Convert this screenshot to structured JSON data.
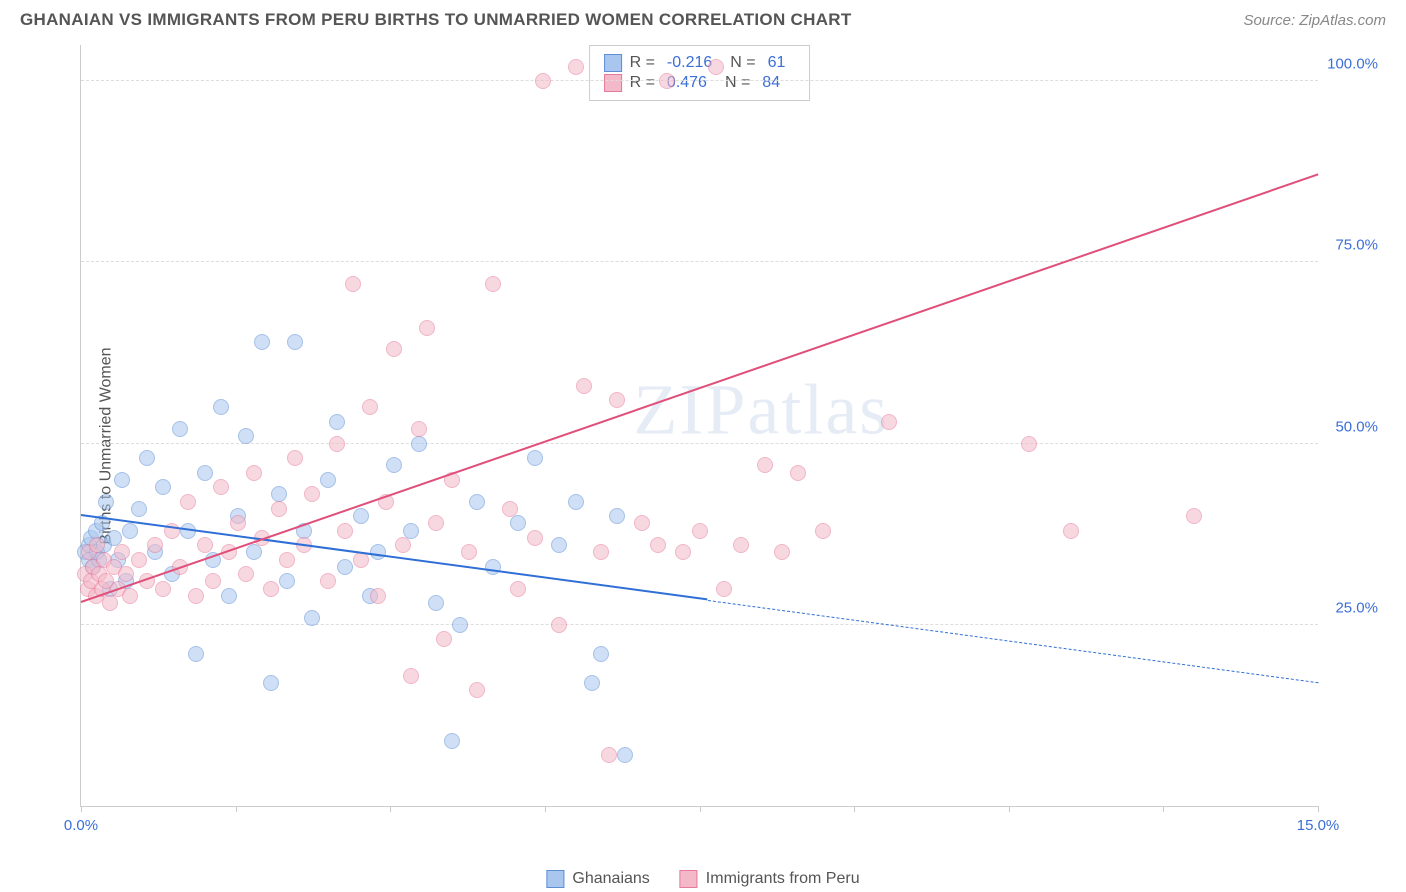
{
  "header": {
    "title": "GHANAIAN VS IMMIGRANTS FROM PERU BIRTHS TO UNMARRIED WOMEN CORRELATION CHART",
    "source": "Source: ZipAtlas.com"
  },
  "watermark": "ZIPatlas",
  "chart": {
    "type": "scatter",
    "ylabel": "Births to Unmarried Women",
    "xlim": [
      0,
      15
    ],
    "ylim": [
      0,
      105
    ],
    "x_ticks": [
      0.0,
      1.875,
      3.75,
      5.625,
      7.5,
      9.375,
      11.25,
      13.125,
      15.0
    ],
    "x_tick_labels": {
      "0": "0.0%",
      "15": "15.0%"
    },
    "y_gridlines": [
      25,
      50,
      75,
      100
    ],
    "y_tick_labels": {
      "25": "25.0%",
      "50": "50.0%",
      "75": "75.0%",
      "100": "100.0%"
    },
    "background_color": "#ffffff",
    "grid_color": "#dddddd",
    "axis_color": "#cccccc",
    "label_color": "#3b6fd6",
    "marker_radius": 8,
    "marker_opacity": 0.55,
    "series": [
      {
        "name": "Ghanaians",
        "color_fill": "#a8c6ee",
        "color_stroke": "#5e8fd6",
        "R": "-0.216",
        "N": "61",
        "trend": {
          "x1": 0,
          "y1": 40,
          "x2": 15,
          "y2": 17,
          "solid_until_x": 7.6,
          "color": "#2f6fd6"
        },
        "points": [
          [
            0.05,
            35
          ],
          [
            0.1,
            36
          ],
          [
            0.1,
            34
          ],
          [
            0.12,
            37
          ],
          [
            0.15,
            33
          ],
          [
            0.18,
            38
          ],
          [
            0.2,
            35
          ],
          [
            0.22,
            34
          ],
          [
            0.25,
            39
          ],
          [
            0.28,
            36
          ],
          [
            0.3,
            42
          ],
          [
            0.35,
            30
          ],
          [
            0.4,
            37
          ],
          [
            0.45,
            34
          ],
          [
            0.5,
            45
          ],
          [
            0.55,
            31
          ],
          [
            0.6,
            38
          ],
          [
            0.7,
            41
          ],
          [
            0.8,
            48
          ],
          [
            0.9,
            35
          ],
          [
            1.0,
            44
          ],
          [
            1.1,
            32
          ],
          [
            1.2,
            52
          ],
          [
            1.3,
            38
          ],
          [
            1.4,
            21
          ],
          [
            1.5,
            46
          ],
          [
            1.6,
            34
          ],
          [
            1.7,
            55
          ],
          [
            1.8,
            29
          ],
          [
            1.9,
            40
          ],
          [
            2.0,
            51
          ],
          [
            2.1,
            35
          ],
          [
            2.2,
            64
          ],
          [
            2.3,
            17
          ],
          [
            2.4,
            43
          ],
          [
            2.5,
            31
          ],
          [
            2.6,
            64
          ],
          [
            2.7,
            38
          ],
          [
            2.8,
            26
          ],
          [
            3.0,
            45
          ],
          [
            3.1,
            53
          ],
          [
            3.2,
            33
          ],
          [
            3.4,
            40
          ],
          [
            3.5,
            29
          ],
          [
            3.6,
            35
          ],
          [
            3.8,
            47
          ],
          [
            4.0,
            38
          ],
          [
            4.1,
            50
          ],
          [
            4.3,
            28
          ],
          [
            4.5,
            9
          ],
          [
            4.6,
            25
          ],
          [
            4.8,
            42
          ],
          [
            5.0,
            33
          ],
          [
            5.3,
            39
          ],
          [
            5.5,
            48
          ],
          [
            5.8,
            36
          ],
          [
            6.0,
            42
          ],
          [
            6.2,
            17
          ],
          [
            6.3,
            21
          ],
          [
            6.5,
            40
          ],
          [
            6.6,
            7
          ]
        ]
      },
      {
        "name": "Immigrants from Peru",
        "color_fill": "#f4b9c8",
        "color_stroke": "#e67a9a",
        "R": "0.476",
        "N": "84",
        "trend": {
          "x1": 0,
          "y1": 28,
          "x2": 15,
          "y2": 87,
          "solid_until_x": 15,
          "color": "#e04f7a"
        },
        "points": [
          [
            0.05,
            32
          ],
          [
            0.08,
            30
          ],
          [
            0.1,
            35
          ],
          [
            0.12,
            31
          ],
          [
            0.15,
            33
          ],
          [
            0.18,
            29
          ],
          [
            0.2,
            36
          ],
          [
            0.22,
            32
          ],
          [
            0.25,
            30
          ],
          [
            0.28,
            34
          ],
          [
            0.3,
            31
          ],
          [
            0.35,
            28
          ],
          [
            0.4,
            33
          ],
          [
            0.45,
            30
          ],
          [
            0.5,
            35
          ],
          [
            0.55,
            32
          ],
          [
            0.6,
            29
          ],
          [
            0.7,
            34
          ],
          [
            0.8,
            31
          ],
          [
            0.9,
            36
          ],
          [
            1.0,
            30
          ],
          [
            1.1,
            38
          ],
          [
            1.2,
            33
          ],
          [
            1.3,
            42
          ],
          [
            1.4,
            29
          ],
          [
            1.5,
            36
          ],
          [
            1.6,
            31
          ],
          [
            1.7,
            44
          ],
          [
            1.8,
            35
          ],
          [
            1.9,
            39
          ],
          [
            2.0,
            32
          ],
          [
            2.1,
            46
          ],
          [
            2.2,
            37
          ],
          [
            2.3,
            30
          ],
          [
            2.4,
            41
          ],
          [
            2.5,
            34
          ],
          [
            2.6,
            48
          ],
          [
            2.7,
            36
          ],
          [
            2.8,
            43
          ],
          [
            3.0,
            31
          ],
          [
            3.1,
            50
          ],
          [
            3.2,
            38
          ],
          [
            3.3,
            72
          ],
          [
            3.4,
            34
          ],
          [
            3.5,
            55
          ],
          [
            3.6,
            29
          ],
          [
            3.7,
            42
          ],
          [
            3.8,
            63
          ],
          [
            3.9,
            36
          ],
          [
            4.0,
            18
          ],
          [
            4.1,
            52
          ],
          [
            4.2,
            66
          ],
          [
            4.3,
            39
          ],
          [
            4.4,
            23
          ],
          [
            4.5,
            45
          ],
          [
            4.7,
            35
          ],
          [
            4.8,
            16
          ],
          [
            5.0,
            72
          ],
          [
            5.2,
            41
          ],
          [
            5.3,
            30
          ],
          [
            5.5,
            37
          ],
          [
            5.6,
            100
          ],
          [
            5.8,
            25
          ],
          [
            6.0,
            102
          ],
          [
            6.1,
            58
          ],
          [
            6.3,
            35
          ],
          [
            6.4,
            7
          ],
          [
            6.5,
            56
          ],
          [
            6.8,
            39
          ],
          [
            7.0,
            36
          ],
          [
            7.1,
            100
          ],
          [
            7.3,
            35
          ],
          [
            7.5,
            38
          ],
          [
            7.7,
            102
          ],
          [
            7.8,
            30
          ],
          [
            8.0,
            36
          ],
          [
            8.3,
            47
          ],
          [
            8.5,
            35
          ],
          [
            8.7,
            46
          ],
          [
            9.0,
            38
          ],
          [
            9.8,
            53
          ],
          [
            11.5,
            50
          ],
          [
            12.0,
            38
          ],
          [
            13.5,
            40
          ]
        ]
      }
    ],
    "legend_bottom": [
      {
        "label": "Ghanaians",
        "fill": "#a8c6ee",
        "stroke": "#5e8fd6"
      },
      {
        "label": "Immigrants from Peru",
        "fill": "#f4b9c8",
        "stroke": "#e67a9a"
      }
    ]
  }
}
